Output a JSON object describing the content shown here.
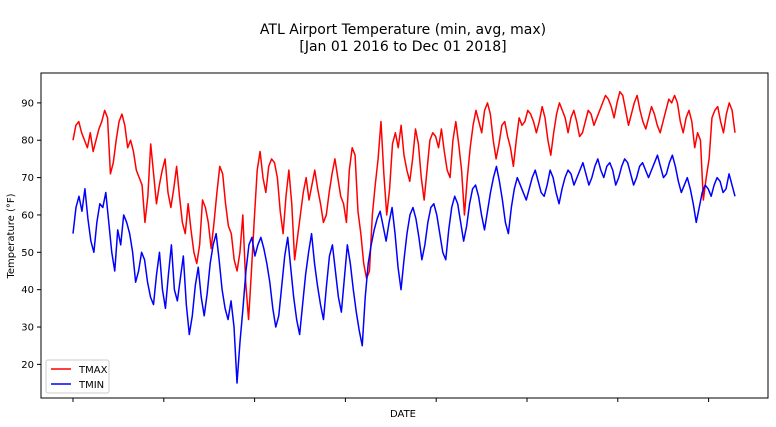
{
  "chart_data": {
    "type": "line",
    "title": "ATL Airport Temperature (min, avg, max)",
    "subtitle": "[Jan 01 2016 to Dec 01 2018]",
    "xlabel": "DATE",
    "ylabel": "Temperature (°F)",
    "ylim": [
      11,
      98
    ],
    "yticks": [
      20,
      30,
      40,
      50,
      60,
      70,
      80,
      90
    ],
    "x_range": [
      "2016-01-01",
      "2018-12-01"
    ],
    "legend_position": "lower-left",
    "grid": false,
    "series": [
      {
        "name": "TMAX",
        "color": "#ff0000",
        "values": [
          80,
          84,
          85,
          82,
          80,
          78,
          82,
          77,
          80,
          83,
          85,
          88,
          86,
          71,
          74,
          80,
          85,
          87,
          84,
          78,
          80,
          77,
          72,
          70,
          68,
          58,
          65,
          79,
          71,
          63,
          68,
          72,
          75,
          66,
          62,
          67,
          73,
          65,
          58,
          55,
          63,
          56,
          50,
          47,
          52,
          64,
          62,
          58,
          51,
          58,
          66,
          73,
          71,
          63,
          57,
          55,
          48,
          45,
          50,
          60,
          42,
          32,
          45,
          59,
          72,
          77,
          70,
          66,
          73,
          75,
          74,
          70,
          61,
          55,
          65,
          72,
          63,
          48,
          54,
          60,
          66,
          70,
          64,
          68,
          72,
          67,
          63,
          58,
          60,
          66,
          71,
          75,
          70,
          65,
          63,
          58,
          72,
          78,
          76,
          61,
          55,
          47,
          43,
          45,
          60,
          68,
          75,
          85,
          71,
          60,
          67,
          79,
          82,
          78,
          84,
          76,
          72,
          69,
          75,
          83,
          79,
          70,
          64,
          72,
          80,
          82,
          81,
          78,
          83,
          77,
          72,
          70,
          80,
          85,
          79,
          72,
          60,
          70,
          78,
          84,
          88,
          85,
          82,
          88,
          90,
          87,
          80,
          75,
          79,
          84,
          85,
          81,
          78,
          73,
          80,
          86,
          84,
          85,
          88,
          87,
          85,
          82,
          85,
          89,
          86,
          80,
          76,
          82,
          87,
          90,
          88,
          86,
          82,
          86,
          88,
          85,
          81,
          82,
          85,
          88,
          87,
          84,
          86,
          88,
          90,
          92,
          91,
          89,
          86,
          90,
          93,
          92,
          88,
          84,
          87,
          90,
          92,
          88,
          85,
          83,
          86,
          89,
          87,
          84,
          82,
          85,
          88,
          91,
          90,
          92,
          90,
          85,
          82,
          86,
          88,
          85,
          78,
          82,
          80,
          64,
          70,
          75,
          86,
          88,
          89,
          85,
          82,
          87,
          90,
          88,
          82
        ]
      },
      {
        "name": "TMIN",
        "color": "#0000ff",
        "values": [
          55,
          62,
          65,
          61,
          67,
          59,
          53,
          50,
          58,
          63,
          62,
          66,
          58,
          50,
          45,
          56,
          52,
          60,
          58,
          55,
          50,
          42,
          45,
          50,
          48,
          42,
          38,
          36,
          44,
          50,
          40,
          35,
          44,
          52,
          40,
          37,
          43,
          49,
          36,
          28,
          33,
          41,
          46,
          38,
          33,
          39,
          47,
          52,
          55,
          48,
          40,
          35,
          32,
          37,
          30,
          15,
          26,
          35,
          45,
          52,
          54,
          49,
          52,
          54,
          51,
          47,
          42,
          35,
          30,
          33,
          41,
          49,
          54,
          46,
          38,
          32,
          28,
          36,
          44,
          50,
          55,
          47,
          41,
          36,
          32,
          41,
          49,
          52,
          45,
          38,
          34,
          43,
          52,
          47,
          40,
          34,
          29,
          25,
          38,
          47,
          52,
          56,
          59,
          61,
          57,
          53,
          58,
          62,
          55,
          46,
          40,
          48,
          55,
          60,
          62,
          59,
          54,
          48,
          52,
          58,
          62,
          63,
          60,
          55,
          50,
          48,
          56,
          62,
          65,
          63,
          58,
          53,
          57,
          63,
          67,
          68,
          65,
          60,
          56,
          61,
          66,
          70,
          73,
          69,
          64,
          58,
          55,
          62,
          67,
          70,
          68,
          66,
          64,
          67,
          70,
          72,
          69,
          66,
          65,
          68,
          72,
          70,
          66,
          63,
          67,
          70,
          72,
          71,
          68,
          70,
          72,
          74,
          71,
          68,
          70,
          73,
          75,
          72,
          70,
          73,
          74,
          72,
          68,
          70,
          73,
          75,
          74,
          71,
          68,
          70,
          73,
          74,
          72,
          70,
          72,
          74,
          76,
          73,
          70,
          71,
          74,
          76,
          73,
          69,
          66,
          68,
          70,
          67,
          63,
          58,
          62,
          66,
          68,
          67,
          65,
          68,
          70,
          69,
          66,
          67,
          71,
          68,
          65
        ]
      }
    ]
  }
}
